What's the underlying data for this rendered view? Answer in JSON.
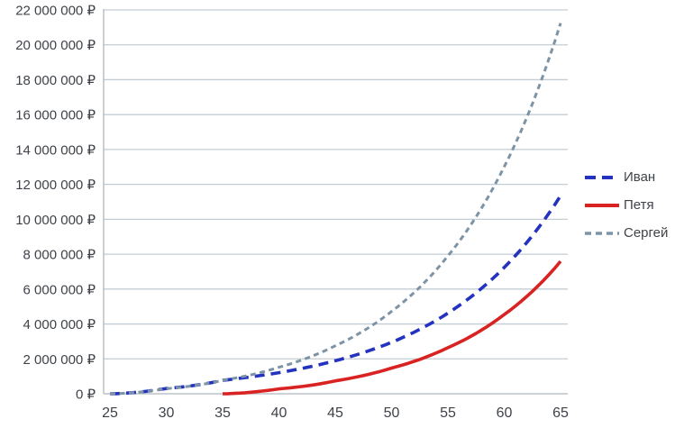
{
  "chart_data": {
    "type": "line",
    "title": "",
    "xlabel": "",
    "ylabel": "",
    "currency": "₽",
    "grid": "horizontal",
    "legend_position": "right",
    "ylim": [
      0,
      22000000
    ],
    "xlim": [
      25,
      65
    ],
    "x": [
      25,
      30,
      35,
      40,
      45,
      50,
      55,
      60,
      65
    ],
    "x_tick_labels": [
      "25",
      "30",
      "35",
      "40",
      "45",
      "50",
      "55",
      "60",
      "65"
    ],
    "y_ticks": [
      {
        "value": 0,
        "label": "0 ₽"
      },
      {
        "value": 2000000,
        "label": "2 000 000 ₽"
      },
      {
        "value": 4000000,
        "label": "4 000 000 ₽"
      },
      {
        "value": 6000000,
        "label": "6 000 000 ₽"
      },
      {
        "value": 8000000,
        "label": "8 000 000 ₽"
      },
      {
        "value": 10000000,
        "label": "10 000 000 ₽"
      },
      {
        "value": 12000000,
        "label": "12 000 000 ₽"
      },
      {
        "value": 14000000,
        "label": "14 000 000 ₽"
      },
      {
        "value": 16000000,
        "label": "16 000 000 ₽"
      },
      {
        "value": 18000000,
        "label": "18 000 000 ₽"
      },
      {
        "value": 20000000,
        "label": "20 000 000 ₽"
      },
      {
        "value": 22000000,
        "label": "22 000 000 ₽"
      }
    ],
    "series": [
      {
        "name": "Иван",
        "color": "#2433bf",
        "style": "dashed-long",
        "values": [
          0,
          300000,
          770000,
          1210000,
          1890000,
          2950000,
          4620000,
          7240000,
          11350000
        ]
      },
      {
        "name": "Петя",
        "color": "#d92222",
        "style": "solid",
        "values": [
          null,
          null,
          0,
          280000,
          740000,
          1470000,
          2640000,
          4540000,
          7590000
        ]
      },
      {
        "name": "Сергей",
        "color": "#7d93a6",
        "style": "dashed-short",
        "values": [
          0,
          290000,
          770000,
          1520000,
          2750000,
          4720000,
          7900000,
          13010000,
          21240000
        ]
      }
    ],
    "colors": {
      "gridline": "#c3cdd5",
      "axis": "#aeb6bc",
      "tick_text": "#3f4349"
    }
  }
}
